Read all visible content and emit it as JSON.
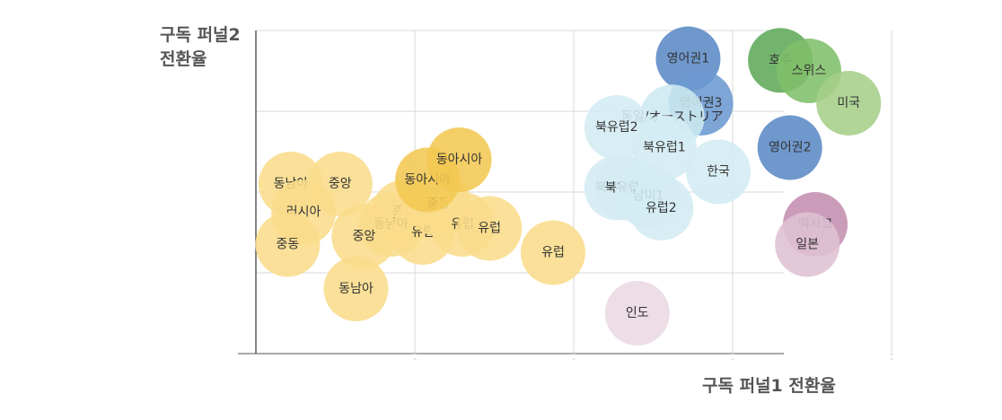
{
  "chart_data": {
    "type": "scatter",
    "xlabel": "구독 퍼널1 전환율",
    "ylabel": "구독 퍼널2 전환율",
    "grid": true,
    "x_ticks": [
      1,
      2,
      3,
      4
    ],
    "y_ticks": [
      1,
      2,
      3,
      4
    ],
    "xlim": [
      0,
      5
    ],
    "ylim": [
      0,
      4
    ],
    "points": [
      {
        "label": "동남아",
        "x": 0.22,
        "y": 2.1,
        "color": "#f9dc8a"
      },
      {
        "label": "중앙",
        "x": 0.53,
        "y": 2.1,
        "color": "#f9dc8a"
      },
      {
        "label": "러시아",
        "x": 0.3,
        "y": 1.75,
        "color": "#f9dc8a"
      },
      {
        "label": "중동",
        "x": 0.2,
        "y": 1.35,
        "color": "#f9dc8a"
      },
      {
        "label": "중동",
        "x": 0.93,
        "y": 1.75,
        "color": "#f9dc8a"
      },
      {
        "label": "동남아",
        "x": 0.85,
        "y": 1.6,
        "color": "#f9dc8a"
      },
      {
        "label": "중앙",
        "x": 0.68,
        "y": 1.45,
        "color": "#f9dc8a"
      },
      {
        "label": "유럽",
        "x": 1.05,
        "y": 1.5,
        "color": "#f9dc8a"
      },
      {
        "label": "중동",
        "x": 1.15,
        "y": 1.85,
        "color": "#f9dc8a"
      },
      {
        "label": "유럽",
        "x": 1.3,
        "y": 1.6,
        "color": "#f9dc8a"
      },
      {
        "label": "유럽",
        "x": 1.47,
        "y": 1.55,
        "color": "#f9dc8a"
      },
      {
        "label": "유럽",
        "x": 1.87,
        "y": 1.25,
        "color": "#f9dc8a"
      },
      {
        "label": "동남아",
        "x": 0.63,
        "y": 0.8,
        "color": "#f9dc8a"
      },
      {
        "label": "동아시아",
        "x": 1.08,
        "y": 2.15,
        "color": "#f3c852"
      },
      {
        "label": "동아시아",
        "x": 1.28,
        "y": 2.4,
        "color": "#f3c852"
      },
      {
        "label": "영어권1",
        "x": 2.72,
        "y": 3.65,
        "color": "#5b8ac6"
      },
      {
        "label": "영어권3",
        "x": 2.8,
        "y": 3.1,
        "color": "#6b99d0"
      },
      {
        "label": "영어권2",
        "x": 3.36,
        "y": 2.55,
        "color": "#5b8ac6"
      },
      {
        "label": "호주",
        "x": 3.3,
        "y": 3.63,
        "color": "#5faa5a"
      },
      {
        "label": "스위스",
        "x": 3.48,
        "y": 3.5,
        "color": "#7fbf6a"
      },
      {
        "label": "미국",
        "x": 3.73,
        "y": 3.1,
        "color": "#a5cf89"
      },
      {
        "label": "동일/オーストリア",
        "x": 2.62,
        "y": 2.93,
        "color": "#cde8f0"
      },
      {
        "label": "북유럽2",
        "x": 2.27,
        "y": 2.8,
        "color": "#d4ecf3"
      },
      {
        "label": "북유럽1",
        "x": 2.57,
        "y": 2.55,
        "color": "#d4ecf3"
      },
      {
        "label": "한국",
        "x": 2.91,
        "y": 2.25,
        "color": "#d4ecf3"
      },
      {
        "label": "북유럽3",
        "x": 2.27,
        "y": 2.05,
        "color": "#d4ecf3"
      },
      {
        "label": "북유럽4",
        "x": 2.33,
        "y": 2.05,
        "color": "#d4ecf3"
      },
      {
        "label": "남미1",
        "x": 2.47,
        "y": 1.95,
        "color": "#d4ecf3"
      },
      {
        "label": "유럽2",
        "x": 2.55,
        "y": 1.8,
        "color": "#d4ecf3"
      },
      {
        "label": "멕시코",
        "x": 3.52,
        "y": 1.6,
        "color": "#c48eb0"
      },
      {
        "label": "일본",
        "x": 3.47,
        "y": 1.35,
        "color": "#dfc1d3"
      },
      {
        "label": "인도",
        "x": 2.4,
        "y": 0.5,
        "color": "#e9d8e2"
      }
    ]
  }
}
